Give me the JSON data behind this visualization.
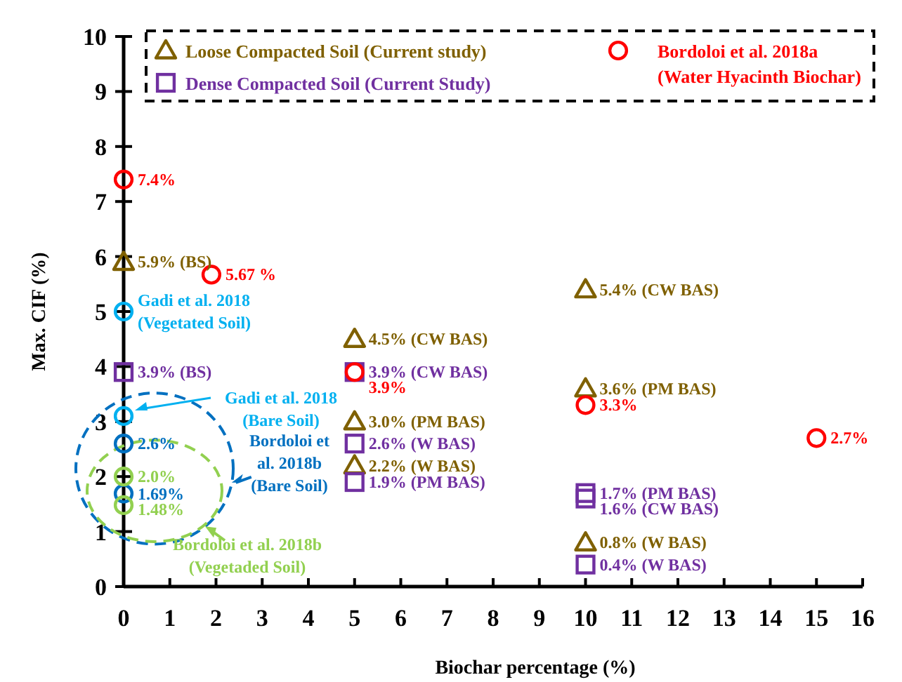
{
  "chart_data": {
    "type": "scatter",
    "xlabel": "Biochar percentage (%)",
    "ylabel": "Max. CIF (%)",
    "xlim": [
      0,
      16
    ],
    "xticks": [
      0,
      1,
      2,
      3,
      4,
      5,
      6,
      7,
      8,
      9,
      10,
      11,
      12,
      13,
      14,
      15,
      16
    ],
    "ylim": [
      0,
      10
    ],
    "yticks": [
      0,
      1,
      2,
      3,
      4,
      5,
      6,
      7,
      8,
      9,
      10
    ],
    "grid": false,
    "legend": "top",
    "series": [
      {
        "name": "Loose Compacted Soil (Current study)",
        "color": "#7f6000",
        "marker": "triangle",
        "x": [
          0,
          5,
          5,
          5,
          10,
          10,
          10
        ],
        "values": [
          5.9,
          4.5,
          3.0,
          2.2,
          5.4,
          3.6,
          0.8
        ],
        "value_labels": [
          "5.9% (BS)",
          "4.5% (CW BAS)",
          "3.0% (PM BAS)",
          "2.2% (W BAS)",
          "5.4% (CW BAS)",
          "3.6% (PM BAS)",
          "0.8% (W BAS)"
        ]
      },
      {
        "name": "Dense Compacted Soil (Current Study)",
        "color": "#7030a0",
        "marker": "square",
        "x": [
          0,
          5,
          5,
          5,
          10,
          10,
          10
        ],
        "values": [
          3.9,
          3.9,
          2.6,
          1.9,
          1.7,
          1.6,
          0.4
        ],
        "value_labels": [
          "3.9% (BS)",
          "3.9% (CW BAS)",
          "2.6% (W BAS)",
          "1.9% (PM BAS)",
          "1.7% (PM BAS)",
          "1.6% (CW BAS)",
          "0.4% (W BAS)"
        ]
      },
      {
        "name": "Bordoloi et al. 2018a (Water Hyacinth Biochar)",
        "color": "#ff0000",
        "marker": "circle",
        "x": [
          0,
          1.9,
          5,
          10,
          15
        ],
        "values": [
          7.4,
          5.67,
          3.9,
          3.3,
          2.7
        ],
        "value_labels": [
          "7.4%",
          "5.67 %",
          "3.9%",
          "3.3%",
          "2.7%"
        ]
      },
      {
        "name": "Gadi et al. 2018 (Vegetated Soil)",
        "color": "#00b0f0",
        "marker": "circle",
        "x": [
          0
        ],
        "values": [
          5.0
        ]
      },
      {
        "name": "Gadi et al. 2018 (Bare Soil)",
        "color": "#00b0f0",
        "marker": "circle",
        "x": [
          0
        ],
        "values": [
          3.1
        ]
      },
      {
        "name": "Bordoloi et al. 2018b (Bare Soil)",
        "color": "#0070c0",
        "marker": "circle",
        "x": [
          0,
          0
        ],
        "values": [
          2.6,
          1.69
        ],
        "value_labels": [
          "2.6%",
          "1.69%"
        ]
      },
      {
        "name": "Bordoloi et al. 2018b (Vegetaded Soil)",
        "color": "#92d050",
        "marker": "circle",
        "x": [
          0,
          0
        ],
        "values": [
          2.0,
          1.48
        ],
        "value_labels": [
          "2.0%",
          "1.48%"
        ]
      }
    ]
  }
}
